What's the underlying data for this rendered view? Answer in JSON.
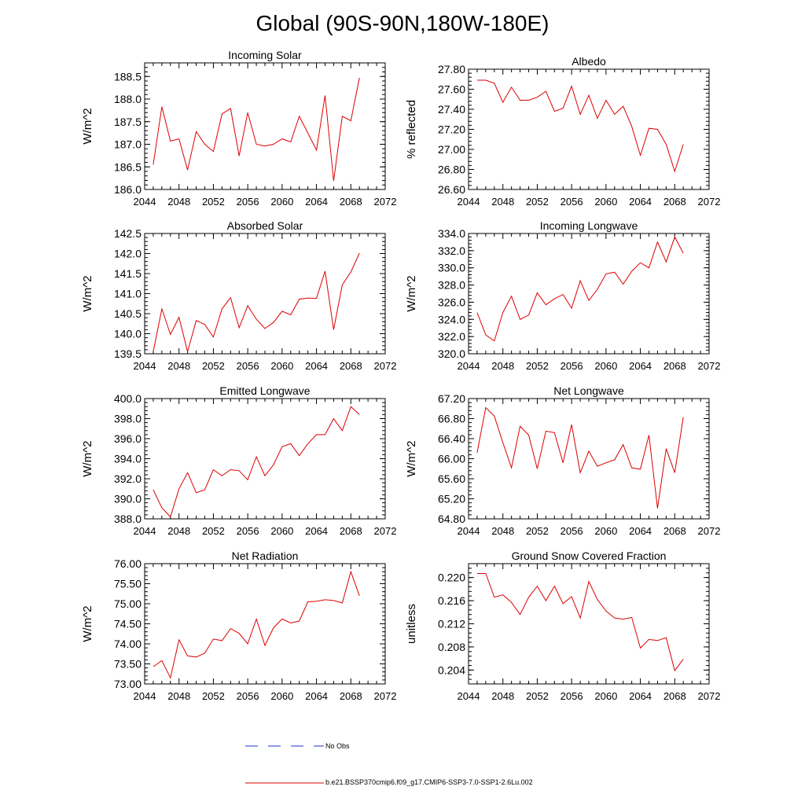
{
  "page_title": "Global (90S-90N,180W-180E)",
  "legend": {
    "obs_label": "No Obs",
    "obs_color": "#2233cc",
    "model_label": "b.e21.BSSP370cmip6.f09_g17.CMIP6-SSP3-7.0-SSP1-2.6Lu.002",
    "model_color": "#dd0000"
  },
  "chart_data": [
    {
      "type": "line",
      "title": "Incoming Solar",
      "xlabel": "",
      "ylabel": "W/m^2",
      "xlim": [
        2044,
        2072
      ],
      "ylim": [
        186.0,
        188.8
      ],
      "x_ticks": [
        "2044",
        "2048",
        "2052",
        "2056",
        "2060",
        "2064",
        "2068",
        "2072"
      ],
      "y_ticks": [
        "186.0",
        "186.5",
        "187.0",
        "187.5",
        "188.0",
        "188.5"
      ],
      "x": [
        2045,
        2046,
        2047,
        2048,
        2049,
        2050,
        2051,
        2052,
        2053,
        2054,
        2055,
        2056,
        2057,
        2058,
        2059,
        2060,
        2061,
        2062,
        2063,
        2064,
        2065,
        2066,
        2067,
        2068,
        2069
      ],
      "series": [
        {
          "values": [
            186.55,
            187.83,
            187.07,
            187.12,
            186.43,
            187.28,
            187.0,
            186.84,
            187.67,
            187.79,
            186.74,
            187.7,
            187.0,
            186.96,
            187.0,
            187.12,
            187.05,
            187.62,
            187.25,
            186.87,
            188.08,
            186.19,
            187.62,
            187.52,
            188.47
          ]
        }
      ]
    },
    {
      "type": "line",
      "title": "Albedo",
      "xlabel": "",
      "ylabel": "% reflected",
      "xlim": [
        2044,
        2072
      ],
      "ylim": [
        26.6,
        27.8
      ],
      "x_ticks": [
        "2044",
        "2048",
        "2052",
        "2056",
        "2060",
        "2064",
        "2068",
        "2072"
      ],
      "y_ticks": [
        "26.60",
        "26.80",
        "27.00",
        "27.20",
        "27.40",
        "27.60",
        "27.80"
      ],
      "x": [
        2045,
        2046,
        2047,
        2048,
        2049,
        2050,
        2051,
        2052,
        2053,
        2054,
        2055,
        2056,
        2057,
        2058,
        2059,
        2060,
        2061,
        2062,
        2063,
        2064,
        2065,
        2066,
        2067,
        2068,
        2069
      ],
      "series": [
        {
          "values": [
            27.69,
            27.69,
            27.66,
            27.47,
            27.62,
            27.49,
            27.49,
            27.52,
            27.58,
            27.38,
            27.41,
            27.63,
            27.35,
            27.54,
            27.31,
            27.49,
            27.35,
            27.43,
            27.23,
            26.94,
            27.21,
            27.2,
            27.05,
            26.78,
            27.05
          ]
        }
      ]
    },
    {
      "type": "line",
      "title": "Absorbed Solar",
      "xlabel": "",
      "ylabel": "W/m^2",
      "xlim": [
        2044,
        2072
      ],
      "ylim": [
        139.5,
        142.5
      ],
      "x_ticks": [
        "2044",
        "2048",
        "2052",
        "2056",
        "2060",
        "2064",
        "2068",
        "2072"
      ],
      "y_ticks": [
        "139.5",
        "140.0",
        "140.5",
        "141.0",
        "141.5",
        "142.0",
        "142.5"
      ],
      "x": [
        2045,
        2046,
        2047,
        2048,
        2049,
        2050,
        2051,
        2052,
        2053,
        2054,
        2055,
        2056,
        2057,
        2058,
        2059,
        2060,
        2061,
        2062,
        2063,
        2064,
        2065,
        2066,
        2067,
        2068,
        2069
      ],
      "series": [
        {
          "values": [
            139.55,
            140.62,
            139.98,
            140.41,
            139.55,
            140.33,
            140.23,
            139.92,
            140.62,
            140.9,
            140.15,
            140.7,
            140.36,
            140.13,
            140.28,
            140.56,
            140.47,
            140.86,
            140.89,
            140.88,
            141.56,
            140.1,
            141.22,
            141.54,
            142.01
          ]
        }
      ]
    },
    {
      "type": "line",
      "title": "Incoming Longwave",
      "xlabel": "",
      "ylabel": "W/m^2",
      "xlim": [
        2044,
        2072
      ],
      "ylim": [
        320.0,
        334.0
      ],
      "x_ticks": [
        "2044",
        "2048",
        "2052",
        "2056",
        "2060",
        "2064",
        "2068",
        "2072"
      ],
      "y_ticks": [
        "320.0",
        "322.0",
        "324.0",
        "326.0",
        "328.0",
        "330.0",
        "332.0",
        "334.0"
      ],
      "x": [
        2045,
        2046,
        2047,
        2048,
        2049,
        2050,
        2051,
        2052,
        2053,
        2054,
        2055,
        2056,
        2057,
        2058,
        2059,
        2060,
        2061,
        2062,
        2063,
        2064,
        2065,
        2066,
        2067,
        2068,
        2069
      ],
      "series": [
        {
          "values": [
            324.8,
            322.2,
            321.5,
            324.8,
            326.7,
            324.0,
            324.5,
            327.1,
            325.7,
            326.4,
            326.9,
            325.3,
            328.5,
            326.2,
            327.5,
            329.3,
            329.5,
            328.1,
            329.6,
            330.6,
            330.0,
            333.0,
            330.7,
            333.6,
            331.7
          ]
        }
      ]
    },
    {
      "type": "line",
      "title": "Emitted Longwave",
      "xlabel": "",
      "ylabel": "W/m^2",
      "xlim": [
        2044,
        2072
      ],
      "ylim": [
        388.0,
        400.0
      ],
      "x_ticks": [
        "2044",
        "2048",
        "2052",
        "2056",
        "2060",
        "2064",
        "2068",
        "2072"
      ],
      "y_ticks": [
        "388.0",
        "390.0",
        "392.0",
        "394.0",
        "396.0",
        "398.0",
        "400.0"
      ],
      "x": [
        2045,
        2046,
        2047,
        2048,
        2049,
        2050,
        2051,
        2052,
        2053,
        2054,
        2055,
        2056,
        2057,
        2058,
        2059,
        2060,
        2061,
        2062,
        2063,
        2064,
        2065,
        2066,
        2067,
        2068,
        2069
      ],
      "series": [
        {
          "values": [
            390.9,
            389.1,
            388.2,
            391.0,
            392.6,
            390.6,
            390.9,
            392.9,
            392.3,
            392.9,
            392.8,
            391.9,
            394.2,
            392.3,
            393.4,
            395.2,
            395.5,
            394.3,
            395.5,
            396.4,
            396.4,
            398.0,
            396.8,
            399.2,
            398.4
          ]
        }
      ]
    },
    {
      "type": "line",
      "title": "Net Longwave",
      "xlabel": "",
      "ylabel": "W/m^2",
      "xlim": [
        2044,
        2072
      ],
      "ylim": [
        64.8,
        67.2
      ],
      "x_ticks": [
        "2044",
        "2048",
        "2052",
        "2056",
        "2060",
        "2064",
        "2068",
        "2072"
      ],
      "y_ticks": [
        "64.80",
        "65.20",
        "65.60",
        "66.00",
        "66.40",
        "66.80",
        "67.20"
      ],
      "x": [
        2045,
        2046,
        2047,
        2048,
        2049,
        2050,
        2051,
        2052,
        2053,
        2054,
        2055,
        2056,
        2057,
        2058,
        2059,
        2060,
        2061,
        2062,
        2063,
        2064,
        2065,
        2066,
        2067,
        2068,
        2069
      ],
      "series": [
        {
          "values": [
            66.12,
            67.02,
            66.85,
            66.32,
            65.82,
            66.65,
            66.47,
            65.8,
            66.55,
            66.52,
            65.92,
            66.68,
            65.72,
            66.15,
            65.85,
            65.92,
            65.98,
            66.28,
            65.82,
            65.79,
            66.47,
            65.01,
            66.2,
            65.72,
            66.83
          ]
        }
      ]
    },
    {
      "type": "line",
      "title": "Net Radiation",
      "xlabel": "",
      "ylabel": "W/m^2",
      "xlim": [
        2044,
        2072
      ],
      "ylim": [
        73.0,
        76.0
      ],
      "x_ticks": [
        "2044",
        "2048",
        "2052",
        "2056",
        "2060",
        "2064",
        "2068",
        "2072"
      ],
      "y_ticks": [
        "73.00",
        "73.50",
        "74.00",
        "74.50",
        "75.00",
        "75.50",
        "76.00"
      ],
      "x": [
        2045,
        2046,
        2047,
        2048,
        2049,
        2050,
        2051,
        2052,
        2053,
        2054,
        2055,
        2056,
        2057,
        2058,
        2059,
        2060,
        2061,
        2062,
        2063,
        2064,
        2065,
        2066,
        2067,
        2068,
        2069
      ],
      "series": [
        {
          "values": [
            73.43,
            73.58,
            73.15,
            74.1,
            73.7,
            73.67,
            73.77,
            74.12,
            74.08,
            74.38,
            74.26,
            74.0,
            74.62,
            73.96,
            74.4,
            74.62,
            74.52,
            74.57,
            75.05,
            75.06,
            75.1,
            75.08,
            75.02,
            75.8,
            75.2
          ]
        }
      ]
    },
    {
      "type": "line",
      "title": "Ground Snow Covered Fraction",
      "xlabel": "",
      "ylabel": "unitless",
      "xlim": [
        2044,
        2072
      ],
      "ylim": [
        0.2016,
        0.2224
      ],
      "x_ticks": [
        "2044",
        "2048",
        "2052",
        "2056",
        "2060",
        "2064",
        "2068",
        "2072"
      ],
      "y_ticks": [
        "0.204",
        "0.208",
        "0.212",
        "0.216",
        "0.220"
      ],
      "x": [
        2045,
        2046,
        2047,
        2048,
        2049,
        2050,
        2051,
        2052,
        2053,
        2054,
        2055,
        2056,
        2057,
        2058,
        2059,
        2060,
        2061,
        2062,
        2063,
        2064,
        2065,
        2066,
        2067,
        2068,
        2069
      ],
      "series": [
        {
          "values": [
            0.2207,
            0.2207,
            0.2166,
            0.217,
            0.2157,
            0.2136,
            0.2166,
            0.2185,
            0.216,
            0.2185,
            0.2155,
            0.2167,
            0.213,
            0.2193,
            0.2162,
            0.2142,
            0.213,
            0.2128,
            0.2131,
            0.2078,
            0.2093,
            0.2091,
            0.2096,
            0.2039,
            0.2059
          ]
        }
      ]
    }
  ]
}
